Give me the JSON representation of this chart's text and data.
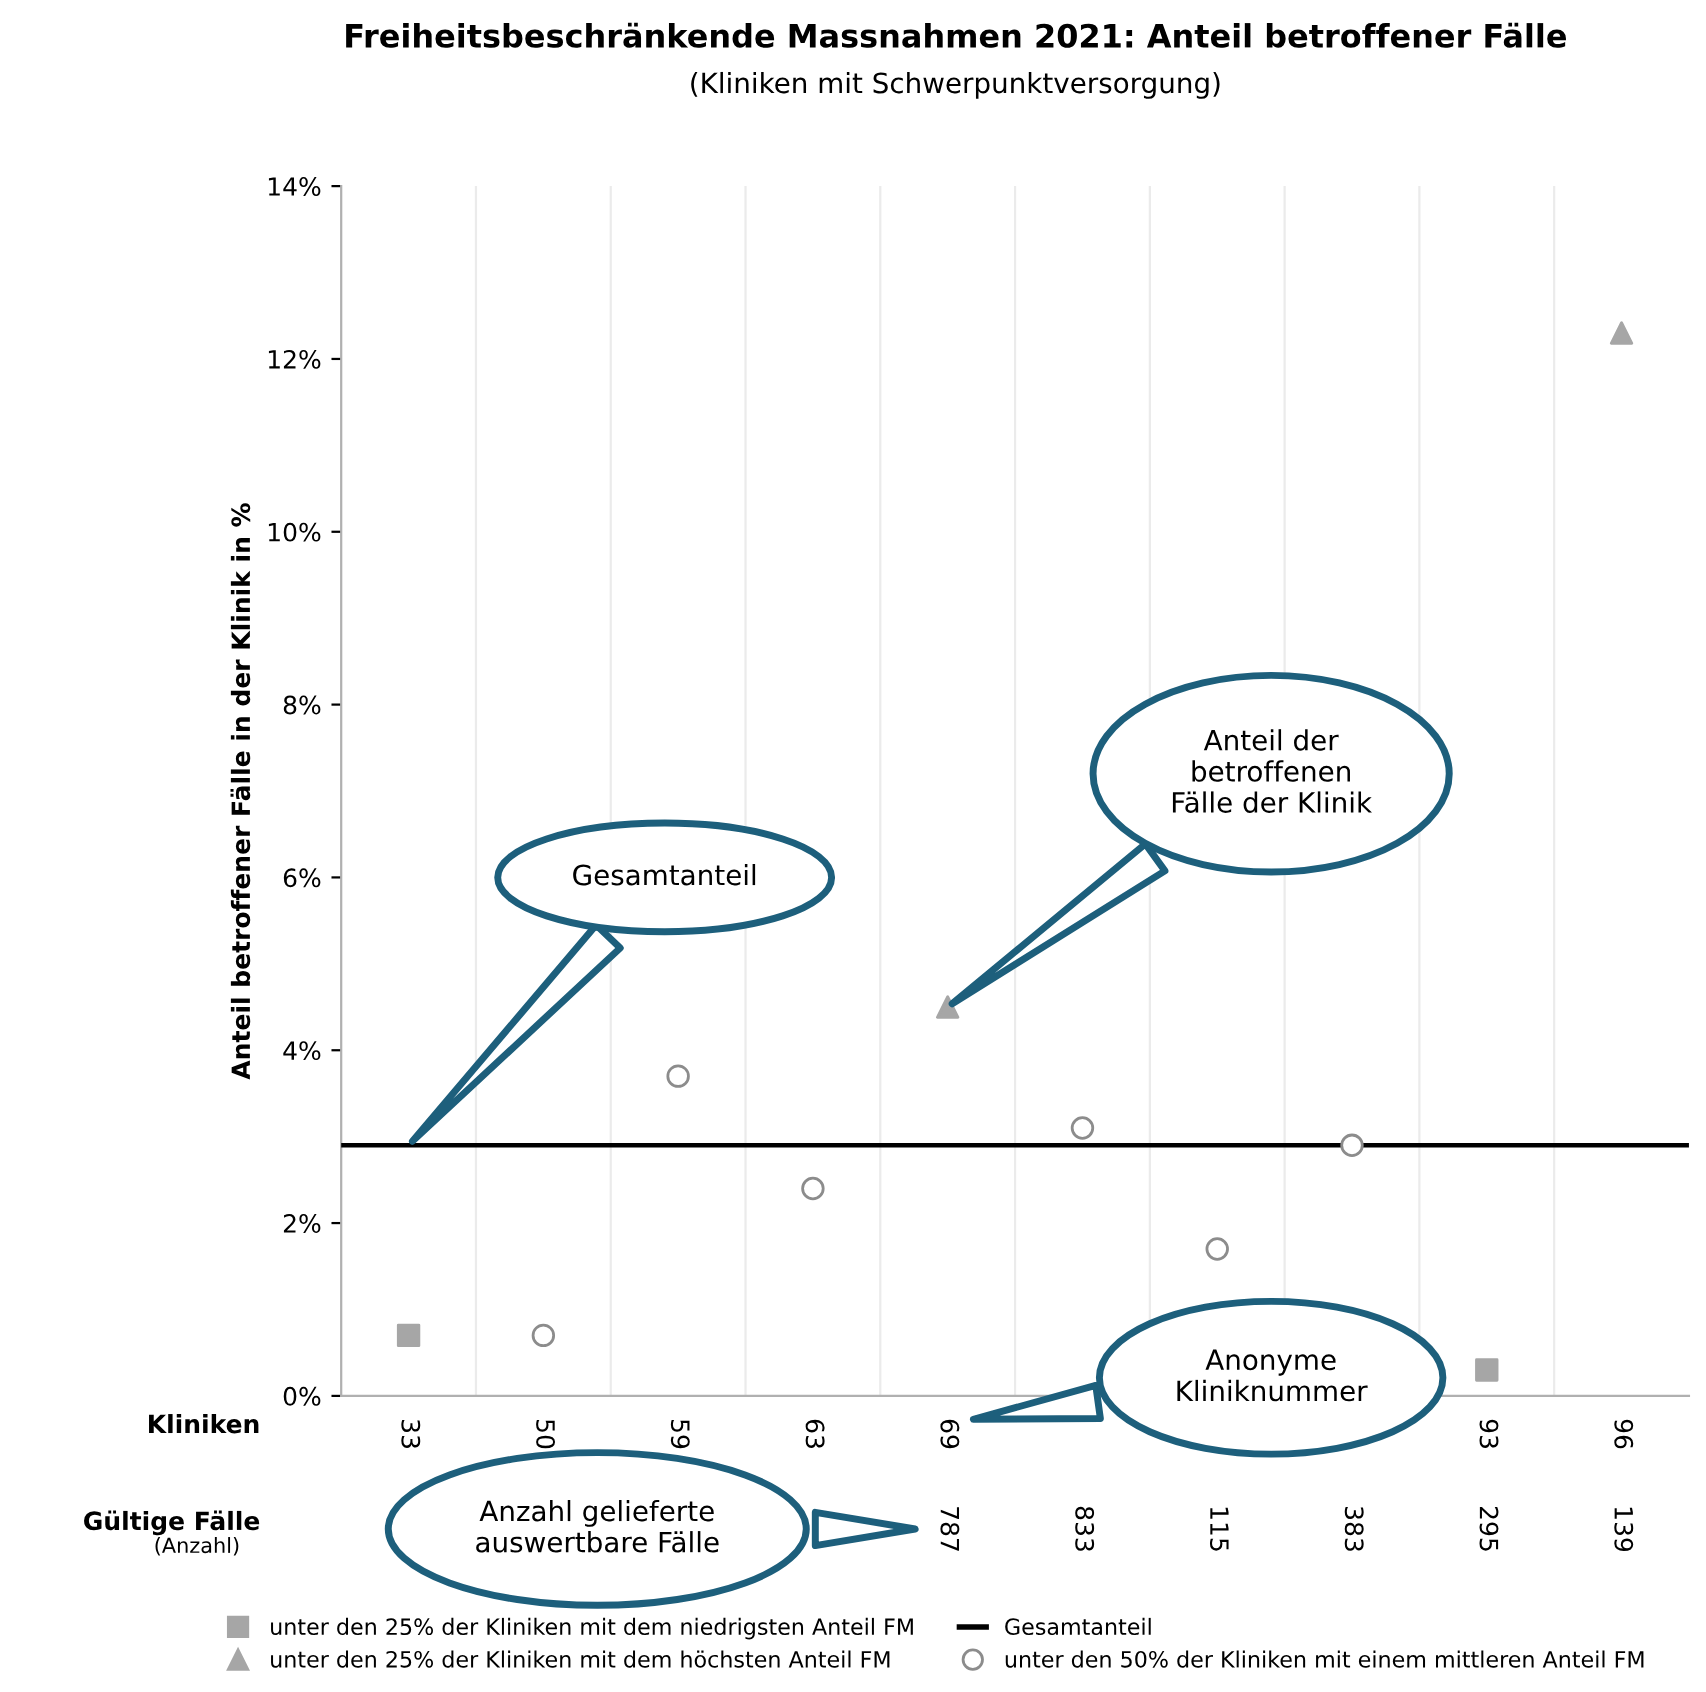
{
  "chart_data": {
    "type": "scatter",
    "title": "Freiheitsbeschränkende Massnahmen 2021: Anteil betroffener Fälle",
    "subtitle": "(Kliniken mit Schwerpunktversorgung)",
    "ylabel": "Anteil betroffener Fälle in der Klinik in %",
    "xlabel": "Kliniken",
    "categories": [
      "33",
      "50",
      "59",
      "63",
      "69",
      null,
      null,
      null,
      "93",
      "96"
    ],
    "series": [
      {
        "name": "unter den 25% der Kliniken mit dem niedrigsten Anteil FM",
        "color": "#a6a6a6",
        "marker": "square",
        "values": [
          0.7,
          null,
          null,
          null,
          null,
          null,
          null,
          null,
          0.3,
          null
        ]
      },
      {
        "name": "unter den 50% der Kliniken mit einem mittleren Anteil FM",
        "color": "#8c8c8c",
        "marker": "circle",
        "values": [
          null,
          0.7,
          3.7,
          2.4,
          null,
          3.1,
          1.7,
          2.9,
          null,
          null
        ]
      },
      {
        "name": "unter den 25% der Kliniken mit dem höchsten Anteil FM",
        "color": "#a6a6a6",
        "marker": "triangle",
        "values": [
          null,
          null,
          null,
          null,
          4.5,
          null,
          null,
          null,
          null,
          12.3
        ]
      }
    ],
    "ref_lines": [
      {
        "axis": "y",
        "value": 2.9,
        "label": "Gesamtanteil",
        "color": "#000000"
      }
    ],
    "ylim": [
      0,
      14
    ],
    "yticks": [
      {
        "value": 0,
        "label": "0%"
      },
      {
        "value": 2,
        "label": "2%"
      },
      {
        "value": 4,
        "label": "4%"
      },
      {
        "value": 6,
        "label": "6%"
      },
      {
        "value": 8,
        "label": "8%"
      },
      {
        "value": 10,
        "label": "10%"
      },
      {
        "value": 12,
        "label": "12%"
      },
      {
        "value": 14,
        "label": "14%"
      }
    ],
    "grid": "x",
    "legend": "bottom",
    "annotations": [
      "Gesamtanteil",
      "Anteil der\nbetroffenen\nFälle der Klinik",
      "Anonyme\nKliniknummer",
      "Anzahl gelieferte\nauswertbare Fälle",
      "Gültige Fälle",
      "(Anzahl)",
      "787",
      "833",
      "115",
      "383",
      "295",
      "139"
    ]
  }
}
